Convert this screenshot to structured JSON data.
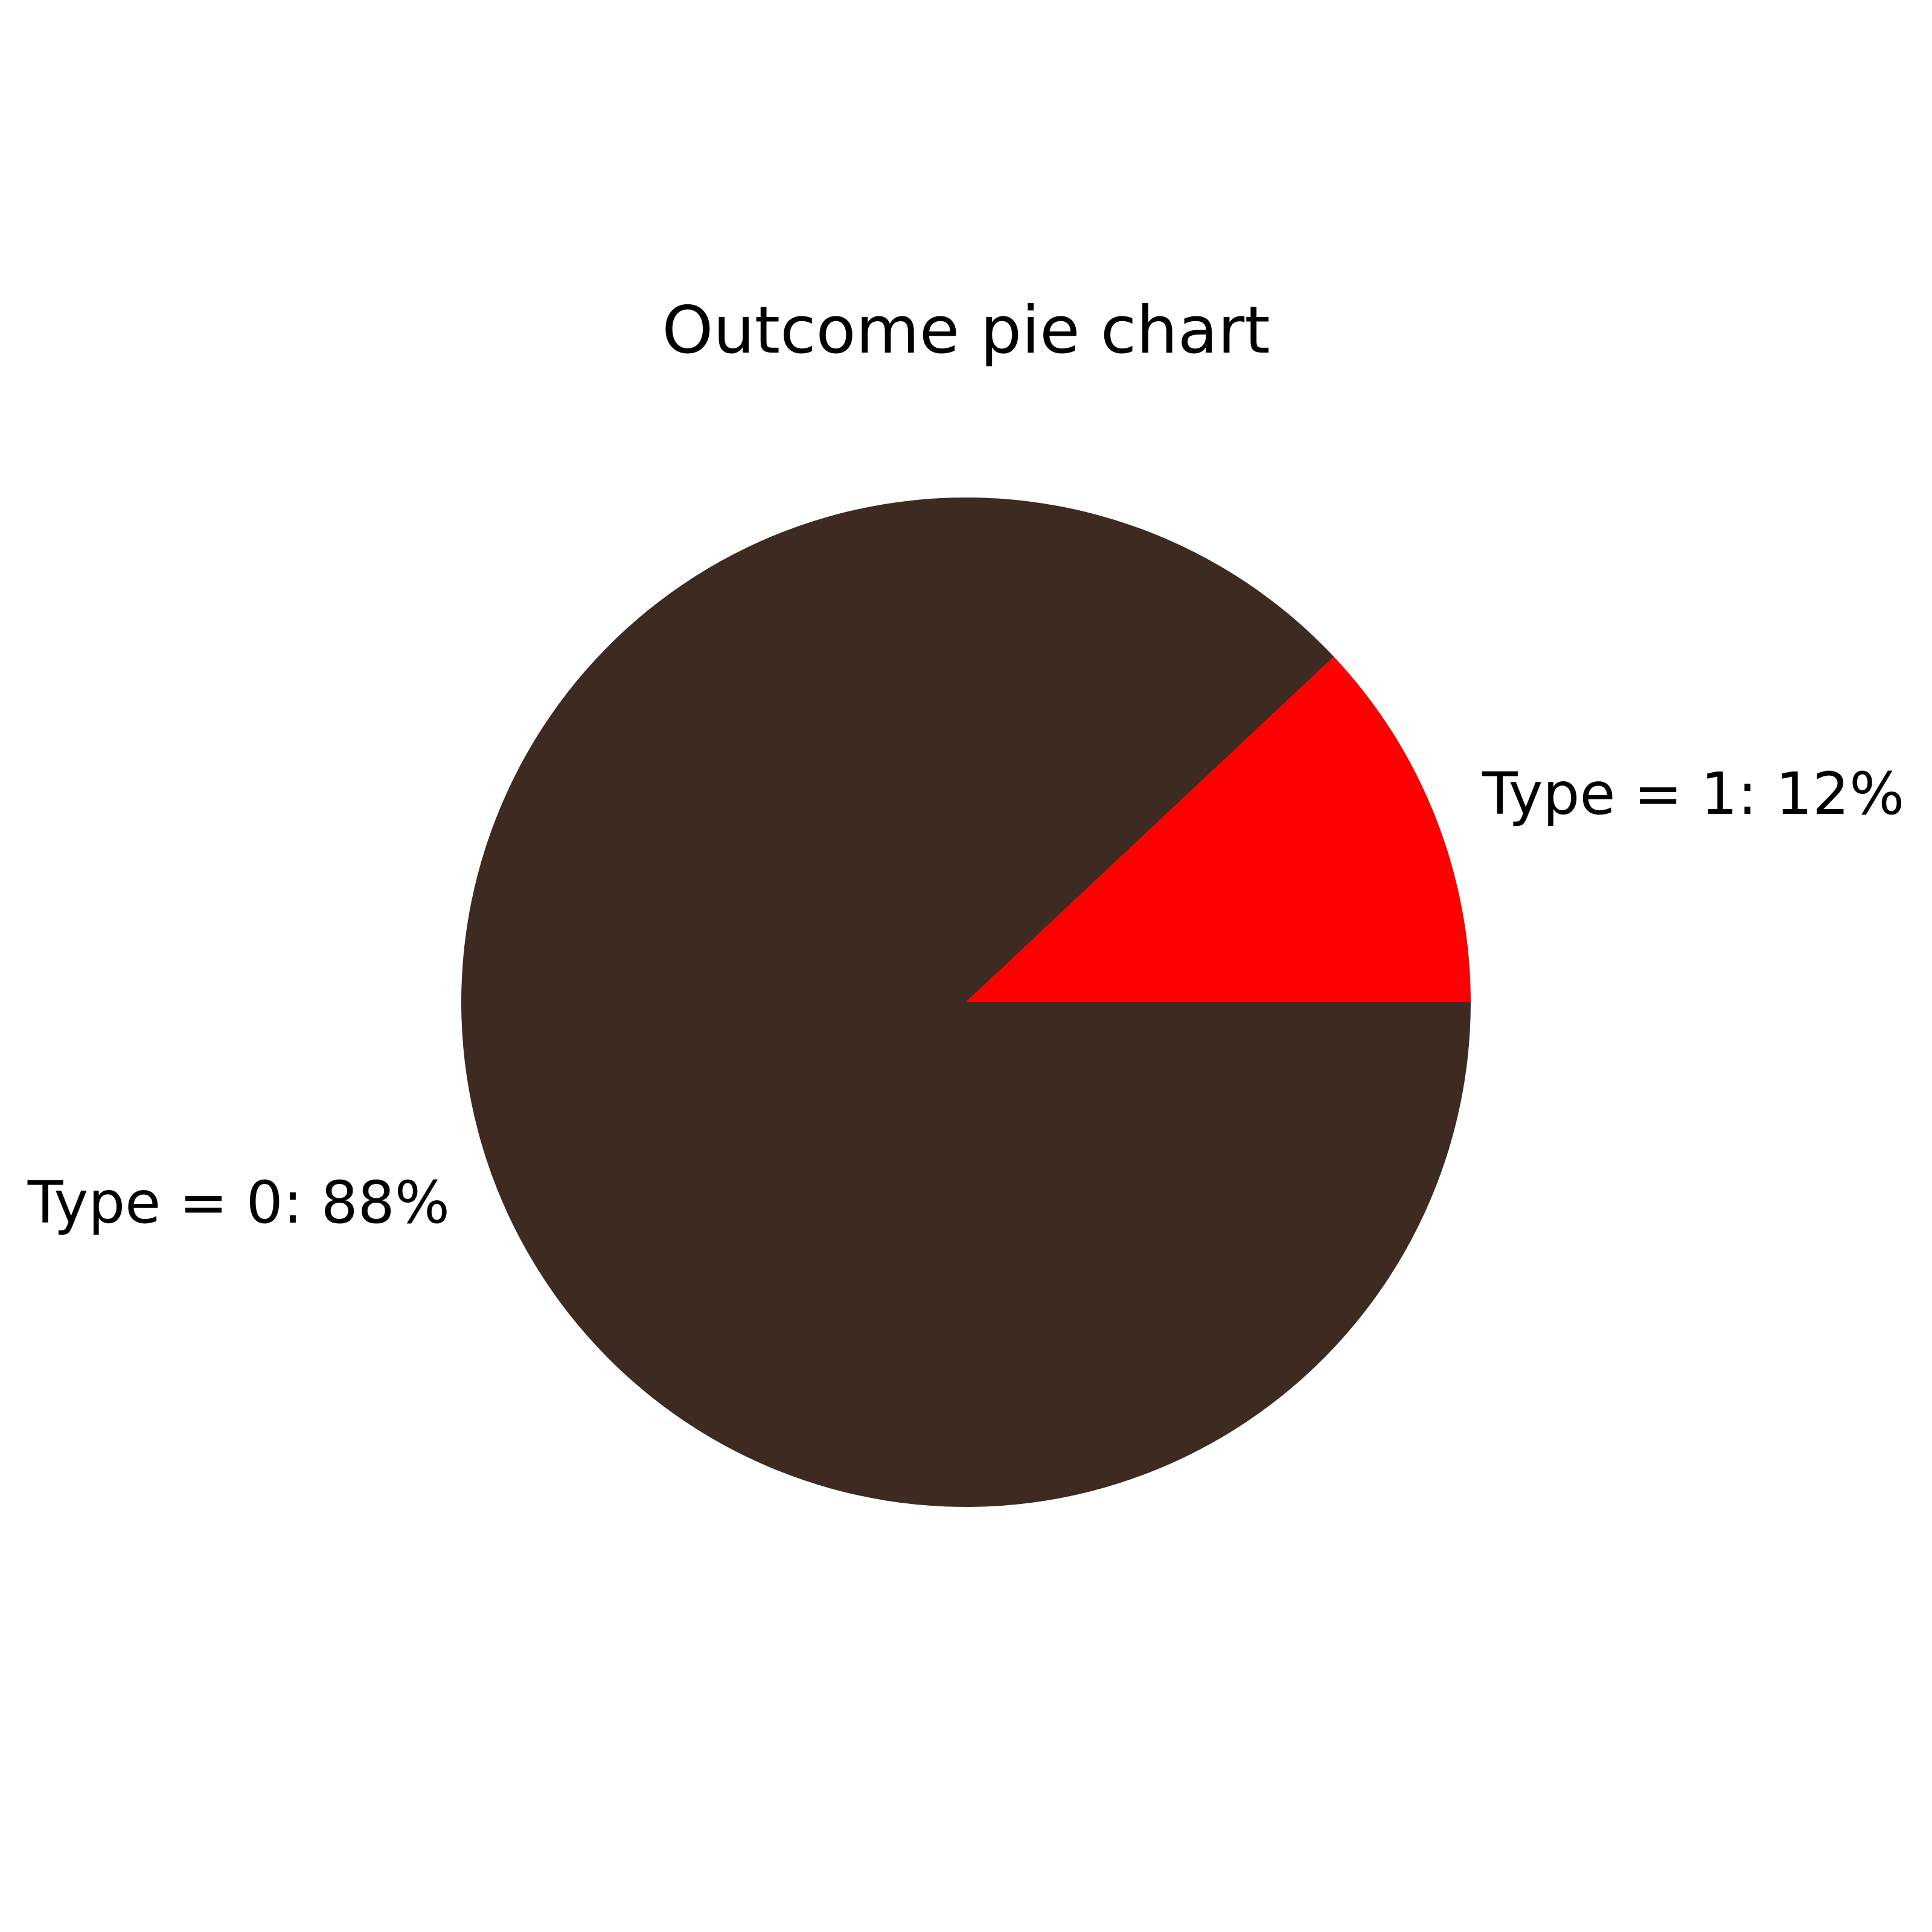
{
  "chart_data": {
    "type": "pie",
    "title": "Outcome pie chart",
    "categories": [
      "Type = 0",
      "Type = 1"
    ],
    "values": [
      88,
      12
    ],
    "labels": [
      "Type = 0: 88%",
      "Type = 1: 12%"
    ],
    "colors": [
      "#3d2b22",
      "#ff0000"
    ],
    "start_angle_deg": 0,
    "direction": "clockwise"
  }
}
